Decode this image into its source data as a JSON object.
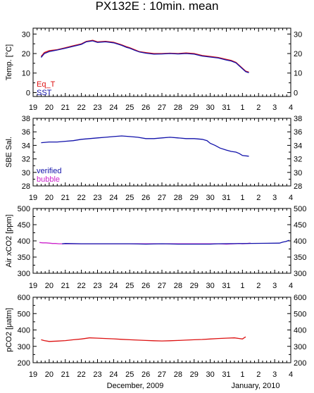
{
  "title": "PX132E : 10min. mean",
  "footer": {
    "left_date": "December, 2009",
    "right_date": "January, 2010"
  },
  "x_tick_labels": [
    "19",
    "20",
    "21",
    "22",
    "23",
    "24",
    "25",
    "26",
    "27",
    "28",
    "29",
    "30",
    "31",
    "1",
    "2",
    "3",
    "4"
  ],
  "chart_data": [
    {
      "type": "line",
      "ylabel": "Temp. [°C]",
      "ylim": [
        -2,
        33
      ],
      "yticks": [
        0,
        10,
        20,
        30
      ],
      "xlim": [
        19,
        35
      ],
      "series": [
        {
          "name": "Eq_T",
          "color": "#dd1111",
          "x": [
            19.5,
            19.7,
            20.0,
            20.5,
            21.0,
            21.5,
            22.0,
            22.3,
            22.7,
            23.0,
            23.5,
            24.0,
            24.5,
            24.8,
            25.0,
            25.3,
            25.6,
            26.0,
            26.5,
            27.0,
            27.5,
            28.0,
            28.5,
            29.0,
            29.5,
            30.0,
            30.5,
            31.0,
            31.3,
            31.6,
            31.8,
            32.0,
            32.2,
            32.4
          ],
          "y": [
            18.5,
            20.5,
            21.5,
            22.0,
            23.0,
            24.0,
            25.0,
            26.2,
            26.8,
            26.0,
            26.3,
            25.8,
            24.5,
            23.5,
            23.0,
            22.0,
            21.0,
            20.5,
            20.0,
            20.0,
            20.2,
            20.0,
            20.3,
            20.0,
            19.0,
            18.5,
            18.0,
            17.0,
            16.5,
            15.5,
            14.0,
            12.5,
            11.0,
            10.5
          ]
        },
        {
          "name": "SST",
          "color": "#1111aa",
          "x": [
            19.5,
            19.7,
            20.0,
            20.5,
            21.0,
            21.5,
            22.0,
            22.3,
            22.7,
            23.0,
            23.5,
            24.0,
            24.5,
            24.8,
            25.0,
            25.3,
            25.6,
            26.0,
            26.5,
            27.0,
            27.5,
            28.0,
            28.5,
            29.0,
            29.5,
            30.0,
            30.5,
            31.0,
            31.3,
            31.6,
            31.8,
            32.0,
            32.2,
            32.4
          ],
          "y": [
            18.0,
            20.0,
            21.0,
            21.8,
            22.7,
            23.7,
            24.7,
            26.0,
            26.5,
            25.7,
            26.0,
            25.5,
            24.2,
            23.2,
            22.7,
            21.7,
            20.8,
            20.2,
            19.7,
            19.8,
            20.0,
            19.8,
            20.0,
            19.7,
            18.7,
            18.2,
            17.7,
            16.7,
            16.2,
            15.2,
            13.7,
            12.2,
            10.7,
            10.2
          ]
        }
      ]
    },
    {
      "type": "line",
      "ylabel": "SBE Sal.",
      "ylim": [
        28,
        38
      ],
      "yticks": [
        28,
        30,
        32,
        34,
        36,
        38
      ],
      "xlim": [
        19,
        35
      ],
      "series": [
        {
          "name": "verified",
          "color": "#1111aa",
          "x": [
            19.5,
            20.0,
            20.5,
            21.0,
            21.5,
            22.0,
            22.5,
            23.0,
            23.5,
            24.0,
            24.5,
            25.0,
            25.5,
            26.0,
            26.5,
            27.0,
            27.5,
            28.0,
            28.5,
            29.0,
            29.5,
            29.8,
            30.0,
            30.3,
            30.6,
            31.0,
            31.3,
            31.6,
            31.8,
            32.0,
            32.4
          ],
          "y": [
            34.4,
            34.5,
            34.5,
            34.6,
            34.7,
            34.9,
            35.0,
            35.1,
            35.2,
            35.3,
            35.4,
            35.3,
            35.2,
            35.0,
            35.0,
            35.1,
            35.2,
            35.1,
            35.0,
            35.0,
            34.9,
            34.7,
            34.3,
            34.0,
            33.6,
            33.3,
            33.1,
            33.0,
            32.8,
            32.5,
            32.4
          ]
        }
      ],
      "legend_extra": {
        "name": "bubble",
        "color": "#cc22cc"
      }
    },
    {
      "type": "line",
      "ylabel": "Air xCO2 [ppm]",
      "ylim": [
        300,
        500
      ],
      "yticks": [
        300,
        350,
        400,
        450,
        500
      ],
      "xlim": [
        19,
        35
      ],
      "series": [
        {
          "name": "bubble",
          "color": "#cc22cc",
          "x": [
            19.4,
            19.6,
            19.8,
            20.0,
            20.2,
            20.4,
            20.6,
            30.5,
            31.0,
            31.5,
            31.8,
            32.0,
            32.3,
            32.5
          ],
          "y": [
            395,
            394,
            394,
            393,
            392,
            392,
            391,
            391,
            390,
            391,
            392,
            391,
            392,
            393
          ]
        },
        {
          "name": "verified",
          "color": "#1111aa",
          "x": [
            20.8,
            21.0,
            22.0,
            23.0,
            24.0,
            25.0,
            26.0,
            27.0,
            28.0,
            29.0,
            30.0,
            30.5,
            34.3,
            34.5,
            34.7,
            34.9
          ],
          "y": [
            391,
            392,
            391,
            391,
            391,
            391,
            390,
            391,
            390,
            390,
            390,
            391,
            393,
            396,
            398,
            402
          ]
        }
      ]
    },
    {
      "type": "line",
      "ylabel": "pCO2 [μatm]",
      "ylim": [
        200,
        600
      ],
      "yticks": [
        200,
        300,
        400,
        500,
        600
      ],
      "xlim": [
        19,
        35
      ],
      "series": [
        {
          "name": "pCO2",
          "color": "#dd1111",
          "x": [
            19.5,
            19.7,
            20.0,
            20.5,
            21.0,
            21.5,
            22.0,
            22.5,
            23.0,
            23.5,
            24.0,
            24.5,
            25.0,
            25.5,
            26.0,
            26.5,
            27.0,
            27.5,
            28.0,
            28.5,
            29.0,
            29.5,
            30.0,
            30.5,
            31.0,
            31.5,
            31.8,
            32.0,
            32.1,
            32.2
          ],
          "y": [
            340,
            335,
            330,
            332,
            335,
            340,
            345,
            352,
            350,
            348,
            346,
            343,
            340,
            338,
            336,
            334,
            333,
            334,
            336,
            338,
            340,
            342,
            345,
            348,
            350,
            352,
            348,
            345,
            352,
            358
          ]
        }
      ]
    }
  ]
}
